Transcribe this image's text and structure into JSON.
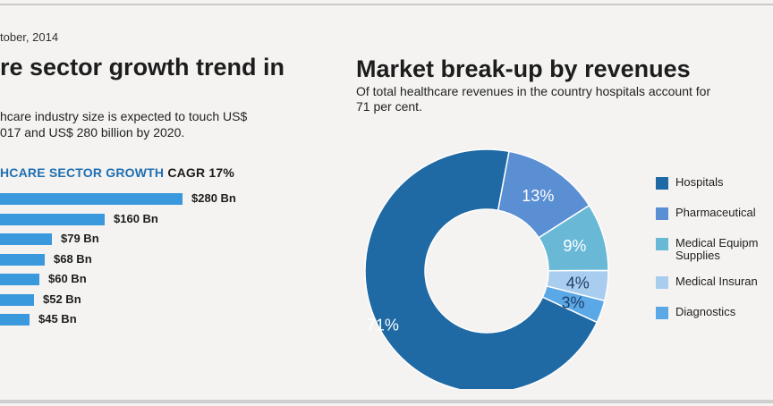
{
  "date": "tober, 2014",
  "left": {
    "title": "re sector growth trend in",
    "subtitle_line1": "hcare industry size is expected to touch US$",
    "subtitle_line2": "017 and US$ 280 billion by 2020.",
    "growth_heading": "HCARE SECTOR GROWTH",
    "cagr": "CAGR 17%"
  },
  "right": {
    "title": "Market break-up by revenues",
    "subtitle_line1": "Of total healthcare revenues in the country hospitals account for",
    "subtitle_line2": "71 per cent."
  },
  "chart_data": [
    {
      "type": "bar",
      "orientation": "horizontal",
      "title": "HCARE SECTOR GROWTH CAGR 17%",
      "categories": [],
      "values": [
        280,
        160,
        79,
        68,
        60,
        52,
        45
      ],
      "labels": [
        "$280 Bn",
        "$160 Bn",
        "$79 Bn",
        "$68 Bn",
        "$60 Bn",
        "$52 Bn",
        "$45 Bn"
      ],
      "unit": "US$ Bn",
      "color": "#3a98dc"
    },
    {
      "type": "pie",
      "variant": "donut",
      "title": "Market break-up by revenues",
      "slices": [
        {
          "name": "Hospitals",
          "value": 71,
          "label": "71%",
          "color": "#1f6aa5"
        },
        {
          "name": "Pharmaceutical",
          "value": 13,
          "label": "13%",
          "color": "#5b8fd3"
        },
        {
          "name": "Medical Equipment & Supplies",
          "value": 9,
          "label": "9%",
          "color": "#69b9d6"
        },
        {
          "name": "Medical Insurance",
          "value": 4,
          "label": "4%",
          "color": "#a8cdef"
        },
        {
          "name": "Diagnostics",
          "value": 3,
          "label": "3%",
          "color": "#5aa8e6"
        }
      ],
      "legend": [
        {
          "label": "Hospitals",
          "color": "#1f6aa5"
        },
        {
          "label": "Pharmaceutical",
          "color": "#5b8fd3"
        },
        {
          "label": "Medical Equipm\nSupplies",
          "color": "#69b9d6"
        },
        {
          "label": "Medical Insuran",
          "color": "#a8cdef"
        },
        {
          "label": "Diagnostics",
          "color": "#5aa8e6"
        }
      ],
      "legend_position": "right"
    }
  ]
}
